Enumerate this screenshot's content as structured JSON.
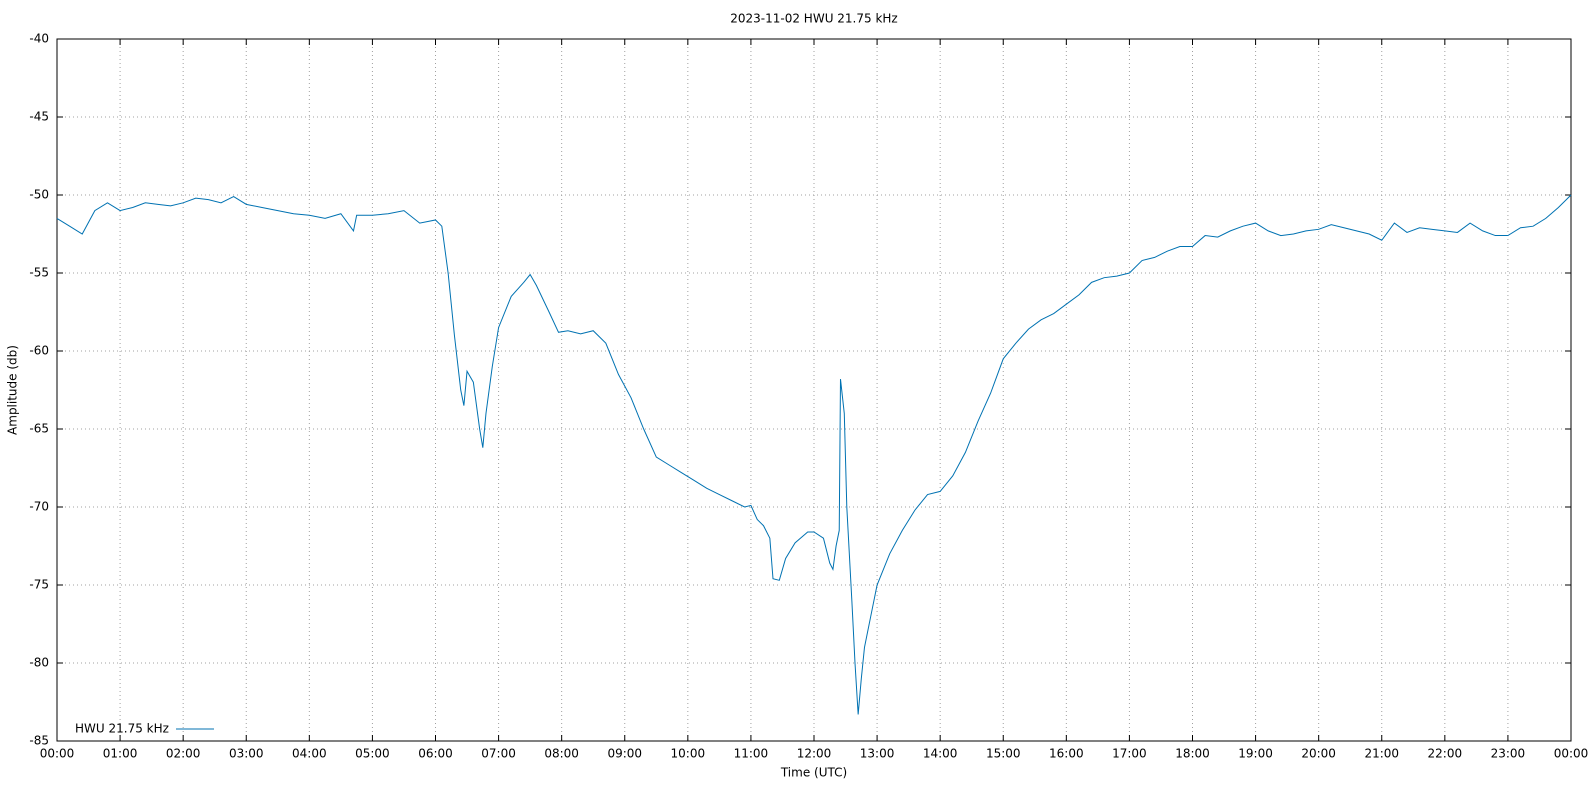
{
  "chart_data": {
    "type": "line",
    "title": "2023-11-02 HWU 21.75 kHz",
    "x_label": "Time (UTC)",
    "y_label": "Amplitude (db)",
    "xlim": [
      0,
      24
    ],
    "xticks": [
      {
        "value": 0,
        "label": "00:00"
      },
      {
        "value": 1,
        "label": "01:00"
      },
      {
        "value": 2,
        "label": "02:00"
      },
      {
        "value": 3,
        "label": "03:00"
      },
      {
        "value": 4,
        "label": "04:00"
      },
      {
        "value": 5,
        "label": "05:00"
      },
      {
        "value": 6,
        "label": "06:00"
      },
      {
        "value": 7,
        "label": "07:00"
      },
      {
        "value": 8,
        "label": "08:00"
      },
      {
        "value": 9,
        "label": "09:00"
      },
      {
        "value": 10,
        "label": "10:00"
      },
      {
        "value": 11,
        "label": "11:00"
      },
      {
        "value": 12,
        "label": "12:00"
      },
      {
        "value": 13,
        "label": "13:00"
      },
      {
        "value": 14,
        "label": "14:00"
      },
      {
        "value": 15,
        "label": "15:00"
      },
      {
        "value": 16,
        "label": "16:00"
      },
      {
        "value": 17,
        "label": "17:00"
      },
      {
        "value": 18,
        "label": "18:00"
      },
      {
        "value": 19,
        "label": "19:00"
      },
      {
        "value": 20,
        "label": "20:00"
      },
      {
        "value": 21,
        "label": "21:00"
      },
      {
        "value": 22,
        "label": "22:00"
      },
      {
        "value": 23,
        "label": "23:00"
      },
      {
        "value": 24,
        "label": "00:00"
      }
    ],
    "ylim": [
      -85,
      -40
    ],
    "yticks": [
      -40,
      -45,
      -50,
      -55,
      -60,
      -65,
      -70,
      -75,
      -80,
      -85
    ],
    "grid": true,
    "legend": "bottom left",
    "x": [
      0,
      0.2,
      0.4,
      0.6,
      0.8,
      1.0,
      1.2,
      1.4,
      1.6,
      1.8,
      2.0,
      2.2,
      2.4,
      2.6,
      2.8,
      3.0,
      3.25,
      3.5,
      3.75,
      4.0,
      4.25,
      4.5,
      4.7,
      4.75,
      5.0,
      5.25,
      5.5,
      5.75,
      6.0,
      6.1,
      6.2,
      6.3,
      6.4,
      6.45,
      6.5,
      6.6,
      6.7,
      6.75,
      6.8,
      6.9,
      7.0,
      7.2,
      7.4,
      7.5,
      7.6,
      7.8,
      7.95,
      8.1,
      8.3,
      8.5,
      8.7,
      8.9,
      9.1,
      9.3,
      9.5,
      9.7,
      9.9,
      10.1,
      10.3,
      10.5,
      10.7,
      10.9,
      11.0,
      11.1,
      11.2,
      11.3,
      11.35,
      11.45,
      11.55,
      11.7,
      11.9,
      12.0,
      12.15,
      12.25,
      12.3,
      12.35,
      12.4,
      12.42,
      12.48,
      12.52,
      12.6,
      12.65,
      12.7,
      12.75,
      12.8,
      12.9,
      13.0,
      13.2,
      13.4,
      13.6,
      13.8,
      14.0,
      14.2,
      14.4,
      14.6,
      14.8,
      15.0,
      15.2,
      15.4,
      15.6,
      15.8,
      16.0,
      16.2,
      16.4,
      16.6,
      16.8,
      17.0,
      17.2,
      17.4,
      17.6,
      17.8,
      18.0,
      18.2,
      18.4,
      18.6,
      18.8,
      19.0,
      19.2,
      19.4,
      19.6,
      19.8,
      20.0,
      20.2,
      20.4,
      20.6,
      20.8,
      21.0,
      21.2,
      21.4,
      21.6,
      21.8,
      22.0,
      22.2,
      22.4,
      22.6,
      22.8,
      23.0,
      23.2,
      23.4,
      23.6,
      23.8,
      24.0
    ],
    "series": [
      {
        "name": "HWU 21.75 kHz",
        "color": "#0072b2",
        "values": [
          -51.5,
          -52,
          -52.5,
          -51,
          -50.5,
          -51,
          -50.8,
          -50.5,
          -50.6,
          -50.7,
          -50.5,
          -50.2,
          -50.3,
          -50.5,
          -50.1,
          -50.6,
          -50.8,
          -51,
          -51.2,
          -51.3,
          -51.5,
          -51.2,
          -52.3,
          -51.3,
          -51.3,
          -51.2,
          -51,
          -51.8,
          -51.6,
          -52,
          -55,
          -59,
          -62.5,
          -63.5,
          -61.3,
          -62,
          -65,
          -66.2,
          -64,
          -61,
          -58.5,
          -56.5,
          -55.6,
          -55.1,
          -55.8,
          -57.5,
          -58.8,
          -58.7,
          -58.9,
          -58.7,
          -59.5,
          -61.5,
          -63,
          -65,
          -66.8,
          -67.3,
          -67.8,
          -68.3,
          -68.8,
          -69.2,
          -69.6,
          -70,
          -69.9,
          -70.8,
          -71.2,
          -72,
          -74.6,
          -74.7,
          -73.3,
          -72.3,
          -71.6,
          -71.6,
          -72,
          -73.6,
          -74,
          -72.5,
          -71.5,
          -61.8,
          -64,
          -70,
          -76,
          -80,
          -83.3,
          -81,
          -79,
          -77,
          -75,
          -73,
          -71.5,
          -70.2,
          -69.2,
          -69,
          -68,
          -66.5,
          -64.5,
          -62.7,
          -60.5,
          -59.5,
          -58.6,
          -58,
          -57.6,
          -57,
          -56.4,
          -55.6,
          -55.3,
          -55.2,
          -55,
          -54.2,
          -54,
          -53.6,
          -53.3,
          -53.3,
          -52.6,
          -52.7,
          -52.3,
          -52,
          -51.8,
          -52.3,
          -52.6,
          -52.5,
          -52.3,
          -52.2,
          -51.9,
          -52.1,
          -52.3,
          -52.5,
          -52.9,
          -51.8,
          -52.4,
          -52.1,
          -52.2,
          -52.3,
          -52.4,
          -51.8,
          -52.3,
          -52.6,
          -52.6,
          -52.1,
          -52,
          -51.5,
          -50.8,
          -50
        ]
      }
    ]
  }
}
